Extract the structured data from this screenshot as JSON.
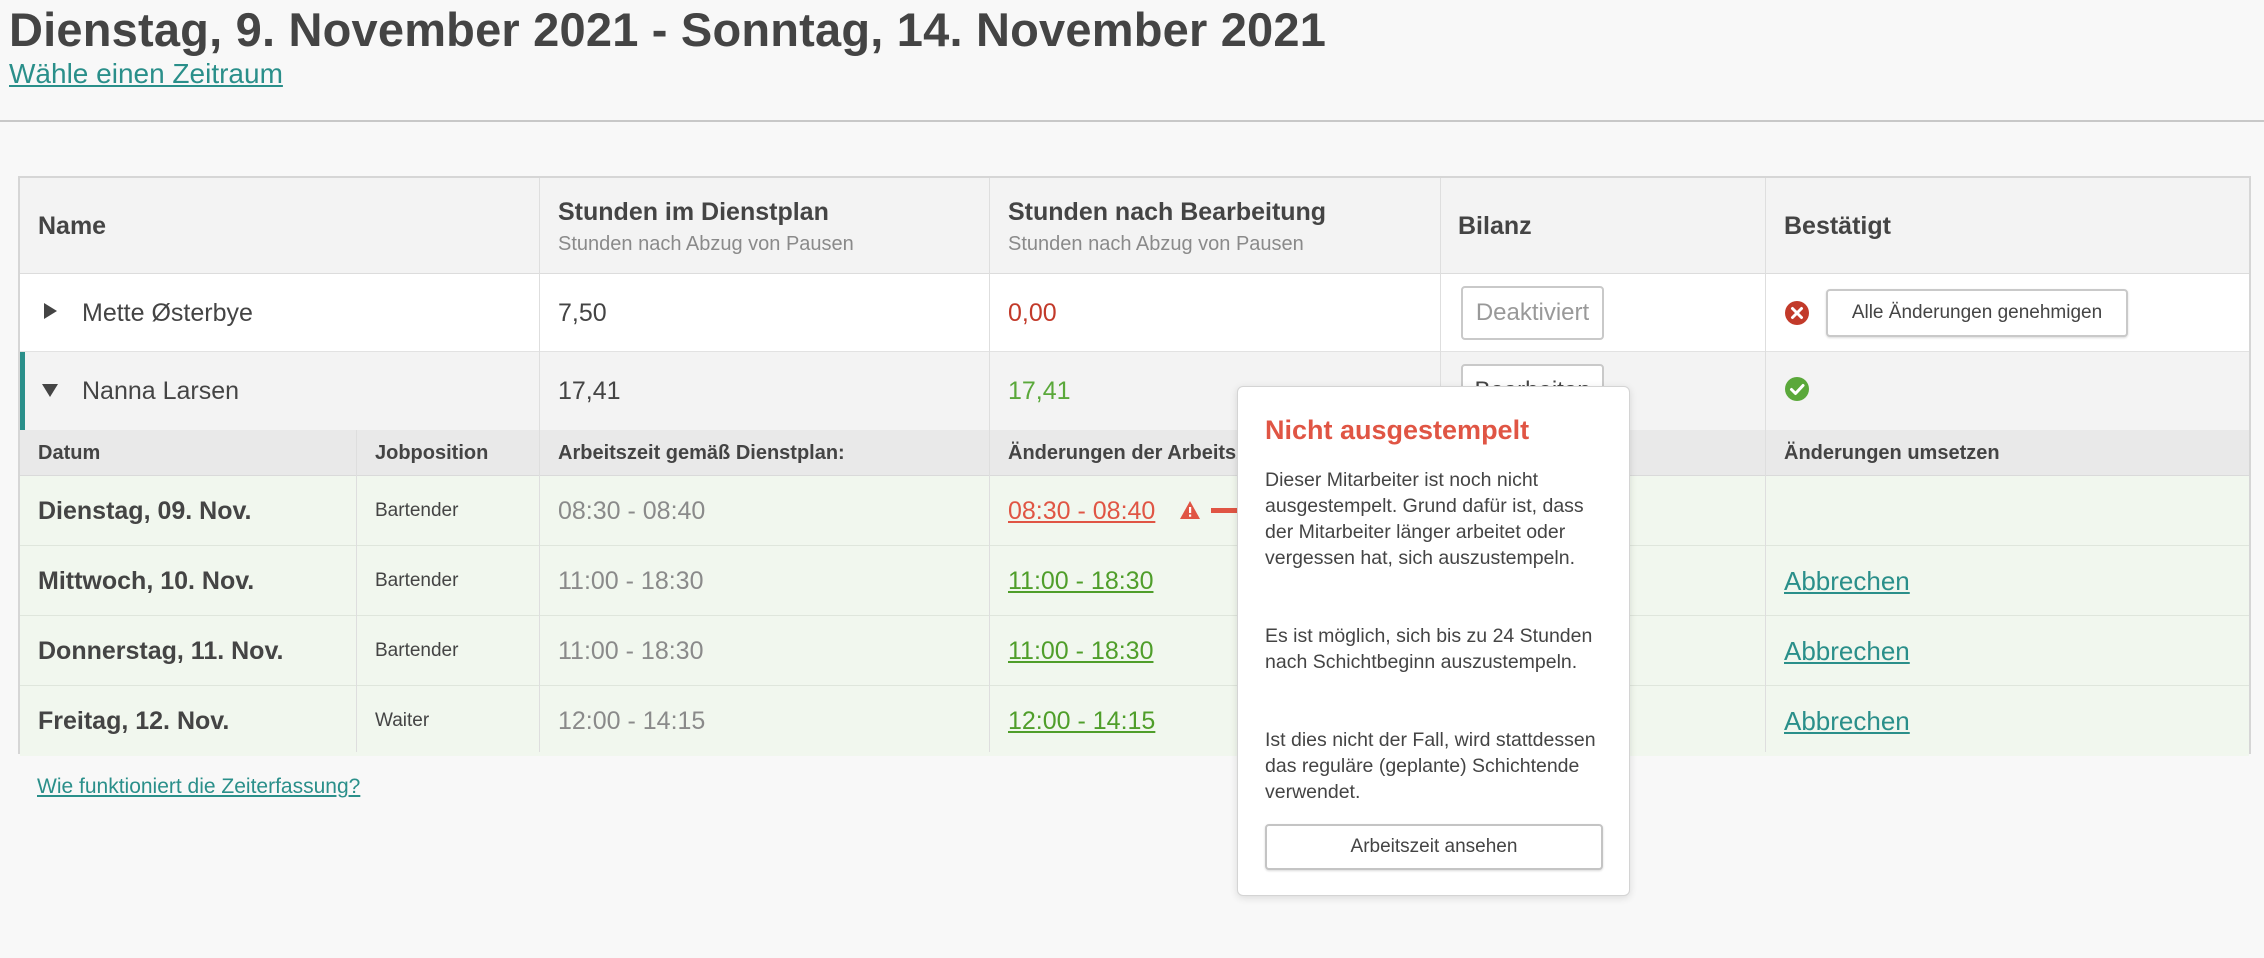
{
  "header": {
    "title": "Dienstag, 9. November 2021 - Sonntag, 14. November 2021",
    "range_link": "Wähle einen Zeitraum"
  },
  "table": {
    "columns": [
      {
        "title": "Name",
        "subtitle": ""
      },
      {
        "title": "Stunden im Dienstplan",
        "subtitle": "Stunden nach Abzug von Pausen"
      },
      {
        "title": "Stunden nach Bearbeitung",
        "subtitle": "Stunden nach Abzug von Pausen"
      },
      {
        "title": "Bilanz",
        "subtitle": ""
      },
      {
        "title": "Bestätigt",
        "subtitle": ""
      }
    ],
    "employees": [
      {
        "name": "Mette Østerbye",
        "planned_hours": "7,50",
        "edited_hours": "0,00",
        "balance_button": "Deaktiviert",
        "approve_button": "Alle Änderungen genehmigen",
        "status": "not-confirmed"
      },
      {
        "name": "Nanna Larsen",
        "planned_hours": "17,41",
        "edited_hours": "17,41",
        "balance_button": "Bearbeiten",
        "status": "confirmed"
      }
    ],
    "sub_columns": {
      "date": "Datum",
      "job": "Jobposition",
      "planned": "Arbeitszeit gemäß Dienstplan:",
      "changes": "Änderungen der Arbeitszeit",
      "apply": "Änderungen umsetzen"
    },
    "shifts": [
      {
        "date": "Dienstag, 09. Nov.",
        "job": "Bartender",
        "planned": "08:30 - 08:40",
        "edited": "08:30 - 08:40",
        "edited_state": "warning",
        "action": ""
      },
      {
        "date": "Mittwoch, 10. Nov.",
        "job": "Bartender",
        "planned": "11:00 - 18:30",
        "edited": "11:00 - 18:30",
        "edited_state": "ok",
        "action": "Abbrechen"
      },
      {
        "date": "Donnerstag, 11. Nov.",
        "job": "Bartender",
        "planned": "11:00 - 18:30",
        "edited": "11:00 - 18:30",
        "edited_state": "ok",
        "action": "Abbrechen"
      },
      {
        "date": "Freitag, 12. Nov.",
        "job": "Waiter",
        "planned": "12:00 - 14:15",
        "edited": "12:00 - 14:15",
        "edited_state": "ok",
        "action": "Abbrechen"
      }
    ]
  },
  "popup": {
    "title": "Nicht ausgestempelt",
    "p1": "Dieser Mitarbeiter ist noch nicht ausgestempelt. Grund dafür ist, dass der Mitarbeiter länger arbeitet oder vergessen hat, sich auszustempeln.",
    "p2": "Es ist möglich, sich bis zu 24 Stunden nach Schichtbeginn auszustempeln.",
    "p3": "Ist dies nicht der Fall, wird stattdessen das reguläre (geplante) Schichtende verwendet.",
    "button": "Arbeitszeit ansehen"
  },
  "footer": {
    "help_link": "Wie funktioniert die Zeiterfassung?"
  },
  "colors": {
    "accent": "#2a8f8a",
    "error": "#c23a2a",
    "warning": "#e05544",
    "success": "#5aa83a"
  }
}
